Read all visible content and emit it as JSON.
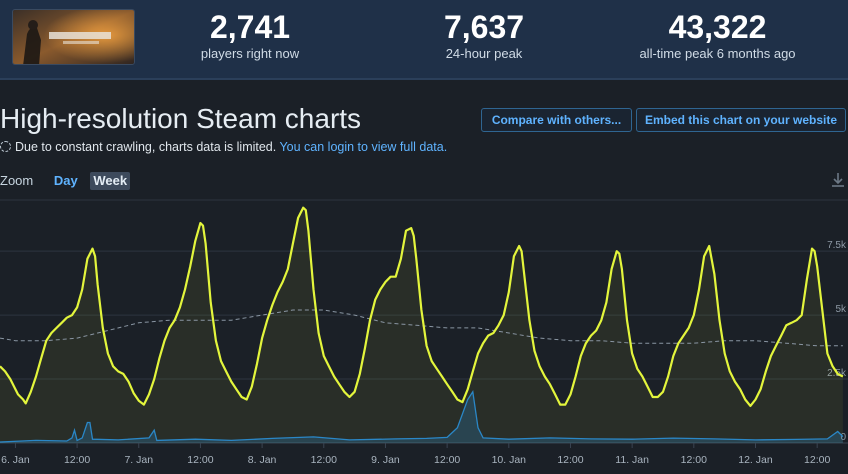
{
  "header": {
    "game_capsule_alt": "Battlefield 1",
    "stats": [
      {
        "value": "2,741",
        "label": "players right now"
      },
      {
        "value": "7,637",
        "label": "24-hour peak"
      },
      {
        "value": "43,322",
        "label": "all-time peak 6 months ago"
      }
    ]
  },
  "chart_section": {
    "title": "High-resolution Steam charts",
    "compare_label": "Compare with others...",
    "embed_label": "Embed this chart on your website",
    "notice_text": "Due to constant crawling, charts data is limited.",
    "notice_link": "You can login to view full data.",
    "zoom_label": "Zoom",
    "zoom_options": [
      "Day",
      "Week"
    ],
    "zoom_active": "Week",
    "download_icon": "download-icon"
  },
  "chart_data": {
    "type": "line",
    "y_ticks": [
      "2.5k",
      "5k",
      "7.5k",
      "0"
    ],
    "y_tick_values": [
      2500,
      5000,
      7500,
      0
    ],
    "ylim": [
      0,
      9500
    ],
    "x_ticks": [
      "6. Jan",
      "12:00",
      "7. Jan",
      "12:00",
      "8. Jan",
      "12:00",
      "9. Jan",
      "12:00",
      "10. Jan",
      "12:00",
      "11. Jan",
      "12:00",
      "12. Jan",
      "12:00"
    ],
    "x_tick_hours": [
      0,
      12,
      24,
      36,
      48,
      60,
      72,
      84,
      96,
      108,
      120,
      132,
      144,
      156
    ],
    "x_range_hours": [
      -3,
      162
    ],
    "colors": {
      "players": "#e3f53c",
      "average": "#8a96a3",
      "twitch": "#2a87c7",
      "grid": "#2c343f"
    },
    "series": [
      {
        "name": "",
        "role": "players",
        "points": [
          [
            -3,
            3000
          ],
          [
            -2,
            2800
          ],
          [
            -1,
            2500
          ],
          [
            0,
            2100
          ],
          [
            0.5,
            1900
          ],
          [
            1,
            1800
          ],
          [
            1.5,
            1700
          ],
          [
            2,
            1550
          ],
          [
            3,
            2000
          ],
          [
            4,
            2600
          ],
          [
            5,
            3300
          ],
          [
            6,
            4000
          ],
          [
            7,
            4300
          ],
          [
            8,
            4500
          ],
          [
            9,
            4700
          ],
          [
            10,
            4900
          ],
          [
            11,
            5000
          ],
          [
            12,
            5300
          ],
          [
            13,
            6000
          ],
          [
            14,
            7200
          ],
          [
            15,
            7600
          ],
          [
            15.5,
            7300
          ],
          [
            16,
            6200
          ],
          [
            17,
            4500
          ],
          [
            18,
            3500
          ],
          [
            19,
            3000
          ],
          [
            20,
            2800
          ],
          [
            21,
            2700
          ],
          [
            22,
            2400
          ],
          [
            23,
            1950
          ],
          [
            24,
            1650
          ],
          [
            25,
            1500
          ],
          [
            26,
            1900
          ],
          [
            27,
            2500
          ],
          [
            28,
            3300
          ],
          [
            29,
            4000
          ],
          [
            30,
            4500
          ],
          [
            31,
            4800
          ],
          [
            32,
            5300
          ],
          [
            33,
            6000
          ],
          [
            34,
            6900
          ],
          [
            35,
            7900
          ],
          [
            36,
            8600
          ],
          [
            36.5,
            8500
          ],
          [
            37,
            7800
          ],
          [
            38,
            5500
          ],
          [
            39,
            4000
          ],
          [
            40,
            3200
          ],
          [
            41,
            2800
          ],
          [
            42,
            2400
          ],
          [
            43,
            2100
          ],
          [
            44,
            1800
          ],
          [
            45,
            1700
          ],
          [
            46,
            2200
          ],
          [
            47,
            3100
          ],
          [
            48,
            4100
          ],
          [
            49,
            4800
          ],
          [
            50,
            5400
          ],
          [
            51,
            5900
          ],
          [
            52,
            6300
          ],
          [
            53,
            6800
          ],
          [
            54,
            7800
          ],
          [
            55,
            8800
          ],
          [
            56,
            9200
          ],
          [
            56.5,
            9100
          ],
          [
            57,
            8300
          ],
          [
            58,
            6000
          ],
          [
            59,
            4300
          ],
          [
            60,
            3400
          ],
          [
            61,
            3000
          ],
          [
            62,
            2600
          ],
          [
            63,
            2300
          ],
          [
            64,
            2000
          ],
          [
            65,
            1800
          ],
          [
            66,
            2000
          ],
          [
            67,
            2700
          ],
          [
            68,
            3700
          ],
          [
            69,
            4800
          ],
          [
            70,
            5600
          ],
          [
            71,
            6000
          ],
          [
            72,
            6300
          ],
          [
            73,
            6500
          ],
          [
            74,
            6500
          ],
          [
            75,
            7200
          ],
          [
            76,
            8300
          ],
          [
            77,
            8400
          ],
          [
            77.5,
            8100
          ],
          [
            78,
            7200
          ],
          [
            79,
            5200
          ],
          [
            80,
            3800
          ],
          [
            81,
            3200
          ],
          [
            82,
            2900
          ],
          [
            83,
            2600
          ],
          [
            84,
            2300
          ],
          [
            85,
            2000
          ],
          [
            86,
            1700
          ],
          [
            87,
            1600
          ],
          [
            88,
            2100
          ],
          [
            89,
            2800
          ],
          [
            90,
            3500
          ],
          [
            91,
            3900
          ],
          [
            92,
            4200
          ],
          [
            93,
            4300
          ],
          [
            94,
            4600
          ],
          [
            95,
            5000
          ],
          [
            96,
            5900
          ],
          [
            97,
            7300
          ],
          [
            98,
            7700
          ],
          [
            98.5,
            7500
          ],
          [
            99,
            6600
          ],
          [
            100,
            4800
          ],
          [
            101,
            3600
          ],
          [
            102,
            3000
          ],
          [
            103,
            2600
          ],
          [
            104,
            2300
          ],
          [
            105,
            1900
          ],
          [
            106,
            1500
          ],
          [
            107,
            1500
          ],
          [
            108,
            1900
          ],
          [
            109,
            2600
          ],
          [
            110,
            3400
          ],
          [
            111,
            3900
          ],
          [
            112,
            4200
          ],
          [
            113,
            4400
          ],
          [
            114,
            4800
          ],
          [
            115,
            5500
          ],
          [
            116,
            6800
          ],
          [
            117,
            7500
          ],
          [
            117.5,
            7400
          ],
          [
            118,
            6800
          ],
          [
            119,
            4800
          ],
          [
            120,
            3500
          ],
          [
            121,
            2900
          ],
          [
            122,
            2600
          ],
          [
            123,
            2200
          ],
          [
            124,
            1800
          ],
          [
            125,
            1800
          ],
          [
            126,
            2000
          ],
          [
            127,
            2600
          ],
          [
            128,
            3400
          ],
          [
            129,
            3900
          ],
          [
            130,
            4200
          ],
          [
            131,
            4500
          ],
          [
            132,
            5000
          ],
          [
            133,
            6000
          ],
          [
            134,
            7300
          ],
          [
            135,
            7700
          ],
          [
            136,
            6600
          ],
          [
            137,
            4800
          ],
          [
            138,
            3500
          ],
          [
            139,
            2800
          ],
          [
            140,
            2400
          ],
          [
            141,
            2100
          ],
          [
            142,
            1700
          ],
          [
            143,
            1450
          ],
          [
            144,
            1700
          ],
          [
            145,
            2100
          ],
          [
            146,
            2800
          ],
          [
            147,
            3400
          ],
          [
            148,
            3800
          ],
          [
            149,
            4200
          ],
          [
            150,
            4600
          ],
          [
            151,
            4700
          ],
          [
            152,
            4800
          ],
          [
            153,
            5000
          ],
          [
            154,
            6400
          ],
          [
            155,
            7600
          ],
          [
            155.5,
            7500
          ],
          [
            156,
            6900
          ],
          [
            157,
            5200
          ],
          [
            158,
            3500
          ],
          [
            159,
            3000
          ],
          [
            160,
            2700
          ],
          [
            161,
            2600
          ]
        ]
      },
      {
        "name": "",
        "role": "average",
        "points": [
          [
            -3,
            4100
          ],
          [
            0,
            4000
          ],
          [
            6,
            4000
          ],
          [
            12,
            4100
          ],
          [
            18,
            4400
          ],
          [
            24,
            4700
          ],
          [
            30,
            4800
          ],
          [
            36,
            4800
          ],
          [
            42,
            4800
          ],
          [
            48,
            5000
          ],
          [
            54,
            5200
          ],
          [
            60,
            5200
          ],
          [
            66,
            5000
          ],
          [
            72,
            4700
          ],
          [
            78,
            4600
          ],
          [
            84,
            4500
          ],
          [
            90,
            4500
          ],
          [
            96,
            4300
          ],
          [
            102,
            4100
          ],
          [
            108,
            4000
          ],
          [
            114,
            4000
          ],
          [
            120,
            3900
          ],
          [
            126,
            3900
          ],
          [
            132,
            3900
          ],
          [
            138,
            4000
          ],
          [
            144,
            4000
          ],
          [
            150,
            3900
          ],
          [
            156,
            3800
          ],
          [
            161,
            3800
          ]
        ]
      },
      {
        "name": "",
        "role": "twitch",
        "points": [
          [
            -3,
            40
          ],
          [
            4,
            100
          ],
          [
            10,
            80
          ],
          [
            11,
            200
          ],
          [
            11.5,
            500
          ],
          [
            12,
            100
          ],
          [
            13,
            200
          ],
          [
            14,
            800
          ],
          [
            14.5,
            800
          ],
          [
            15,
            150
          ],
          [
            20,
            120
          ],
          [
            26,
            200
          ],
          [
            27,
            500
          ],
          [
            27.5,
            100
          ],
          [
            35,
            150
          ],
          [
            42,
            100
          ],
          [
            50,
            180
          ],
          [
            58,
            240
          ],
          [
            65,
            120
          ],
          [
            74,
            160
          ],
          [
            80,
            180
          ],
          [
            84,
            220
          ],
          [
            86,
            600
          ],
          [
            88,
            1700
          ],
          [
            89,
            2000
          ],
          [
            90,
            600
          ],
          [
            91,
            200
          ],
          [
            96,
            150
          ],
          [
            104,
            200
          ],
          [
            112,
            160
          ],
          [
            120,
            150
          ],
          [
            128,
            190
          ],
          [
            136,
            160
          ],
          [
            144,
            120
          ],
          [
            152,
            140
          ],
          [
            158,
            160
          ],
          [
            160,
            450
          ],
          [
            161,
            250
          ]
        ]
      }
    ]
  }
}
